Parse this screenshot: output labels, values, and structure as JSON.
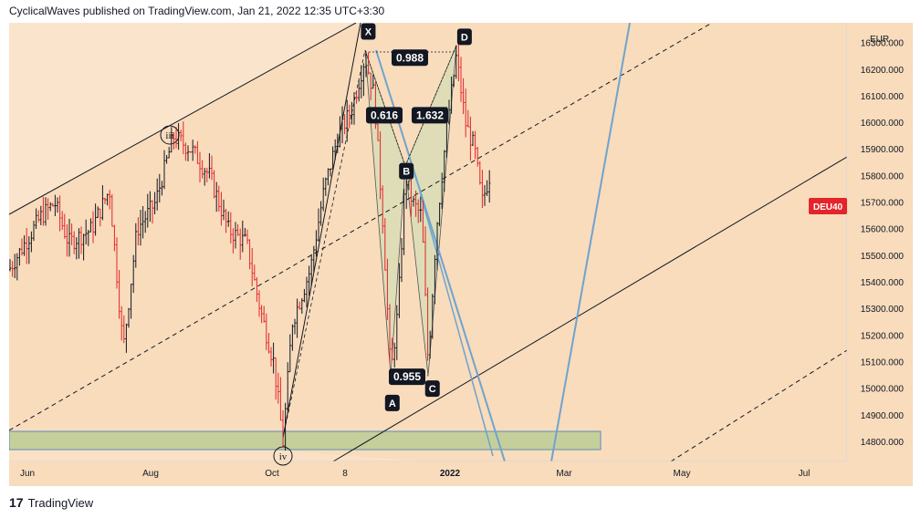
{
  "header": {
    "text": "CyclicalWaves published on TradingView.com, Jan 21, 2022 12:35 UTC+3:30"
  },
  "footer": {
    "logo": "17",
    "brand": "TradingView"
  },
  "chart_data": {
    "type": "candlestick",
    "symbol_badge": "DEU40",
    "currency": "EUR",
    "symbol_price": 15690,
    "ylim": [
      14700,
      16250
    ],
    "y_ticks": [
      "14800.000",
      "14900.000",
      "15000.000",
      "15100.000",
      "15200.000",
      "15300.000",
      "15400.000",
      "15500.000",
      "15600.000",
      "15700.000",
      "15800.000",
      "15900.000",
      "16000.000",
      "16100.000",
      "16200.000",
      "16300.000"
    ],
    "x_ticks": [
      "Jun",
      "Aug",
      "Oct",
      "8",
      "2022",
      "Mar",
      "May",
      "Jul"
    ],
    "wave_labels": [
      "iii",
      "iv"
    ],
    "pattern_points": [
      {
        "label": "X",
        "date": "2021-11-18",
        "price": 16290
      },
      {
        "label": "A",
        "date": "2021-11-30",
        "price": 15030
      },
      {
        "label": "B",
        "date": "2021-12-07",
        "price": 15820
      },
      {
        "label": "C",
        "date": "2021-12-20",
        "price": 15050
      },
      {
        "label": "D",
        "date": "2022-01-05",
        "price": 16270
      }
    ],
    "ratios": [
      {
        "text": "0.988",
        "price": 16260
      },
      {
        "text": "0.616",
        "price": 16030
      },
      {
        "text": "1.632",
        "price": 16030
      },
      {
        "text": "0.955",
        "price": 15060
      }
    ],
    "support_zone": {
      "from": 14790,
      "to": 14860
    }
  }
}
